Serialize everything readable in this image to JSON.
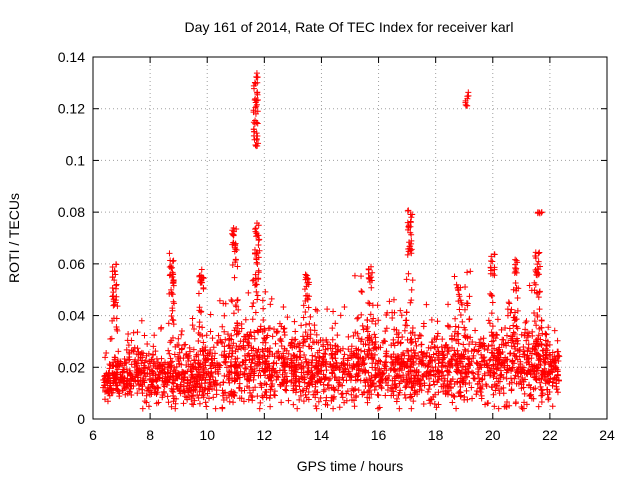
{
  "chart_data": {
    "type": "scatter",
    "title": "Day 161 of 2014, Rate Of TEC Index for receiver karl",
    "xlabel": "GPS time / hours",
    "ylabel": "ROTI / TECUs",
    "xlim": [
      6,
      24
    ],
    "ylim": [
      0,
      0.14
    ],
    "xticks": [
      "6",
      "8",
      "10",
      "12",
      "14",
      "16",
      "18",
      "20",
      "22",
      "24"
    ],
    "yticks": [
      "0",
      "0.02",
      "0.04",
      "0.06",
      "0.08",
      "0.1",
      "0.12",
      "0.14"
    ],
    "grid": true,
    "marker": "+",
    "color": "#ff0000",
    "series_name": "ROTI",
    "data_span_hours": [
      6.35,
      22.35
    ],
    "activity_profile": [
      {
        "x": 6.5,
        "base": 0.015,
        "spread": 0.008
      },
      {
        "x": 7.5,
        "base": 0.017,
        "spread": 0.012
      },
      {
        "x": 8.5,
        "base": 0.016,
        "spread": 0.012
      },
      {
        "x": 9.5,
        "base": 0.016,
        "spread": 0.013
      },
      {
        "x": 10.5,
        "base": 0.018,
        "spread": 0.014
      },
      {
        "x": 11.5,
        "base": 0.021,
        "spread": 0.017
      },
      {
        "x": 12.5,
        "base": 0.02,
        "spread": 0.015
      },
      {
        "x": 13.5,
        "base": 0.018,
        "spread": 0.014
      },
      {
        "x": 14.5,
        "base": 0.018,
        "spread": 0.014
      },
      {
        "x": 15.5,
        "base": 0.021,
        "spread": 0.016
      },
      {
        "x": 16.5,
        "base": 0.019,
        "spread": 0.015
      },
      {
        "x": 17.5,
        "base": 0.019,
        "spread": 0.014
      },
      {
        "x": 18.5,
        "base": 0.02,
        "spread": 0.015
      },
      {
        "x": 19.5,
        "base": 0.02,
        "spread": 0.015
      },
      {
        "x": 20.5,
        "base": 0.021,
        "spread": 0.017
      },
      {
        "x": 21.5,
        "base": 0.021,
        "spread": 0.018
      },
      {
        "x": 22.3,
        "base": 0.018,
        "spread": 0.012
      }
    ],
    "peaks": [
      {
        "x": 6.75,
        "y_min": 0.045,
        "y_max": 0.06
      },
      {
        "x": 8.75,
        "y_min": 0.048,
        "y_max": 0.066
      },
      {
        "x": 9.8,
        "y_min": 0.05,
        "y_max": 0.06
      },
      {
        "x": 10.95,
        "y_min": 0.06,
        "y_max": 0.074
      },
      {
        "x": 11.7,
        "y_min": 0.105,
        "y_max": 0.134
      },
      {
        "x": 11.75,
        "y_min": 0.06,
        "y_max": 0.076
      },
      {
        "x": 13.5,
        "y_min": 0.045,
        "y_max": 0.056
      },
      {
        "x": 15.7,
        "y_min": 0.05,
        "y_max": 0.059
      },
      {
        "x": 17.1,
        "y_min": 0.062,
        "y_max": 0.081
      },
      {
        "x": 18.8,
        "y_min": 0.045,
        "y_max": 0.052
      },
      {
        "x": 19.1,
        "y_min": 0.121,
        "y_max": 0.127
      },
      {
        "x": 20.0,
        "y_min": 0.055,
        "y_max": 0.064
      },
      {
        "x": 20.8,
        "y_min": 0.055,
        "y_max": 0.062
      },
      {
        "x": 21.55,
        "y_min": 0.055,
        "y_max": 0.065
      },
      {
        "x": 21.65,
        "y_min": 0.079,
        "y_max": 0.08
      }
    ]
  }
}
